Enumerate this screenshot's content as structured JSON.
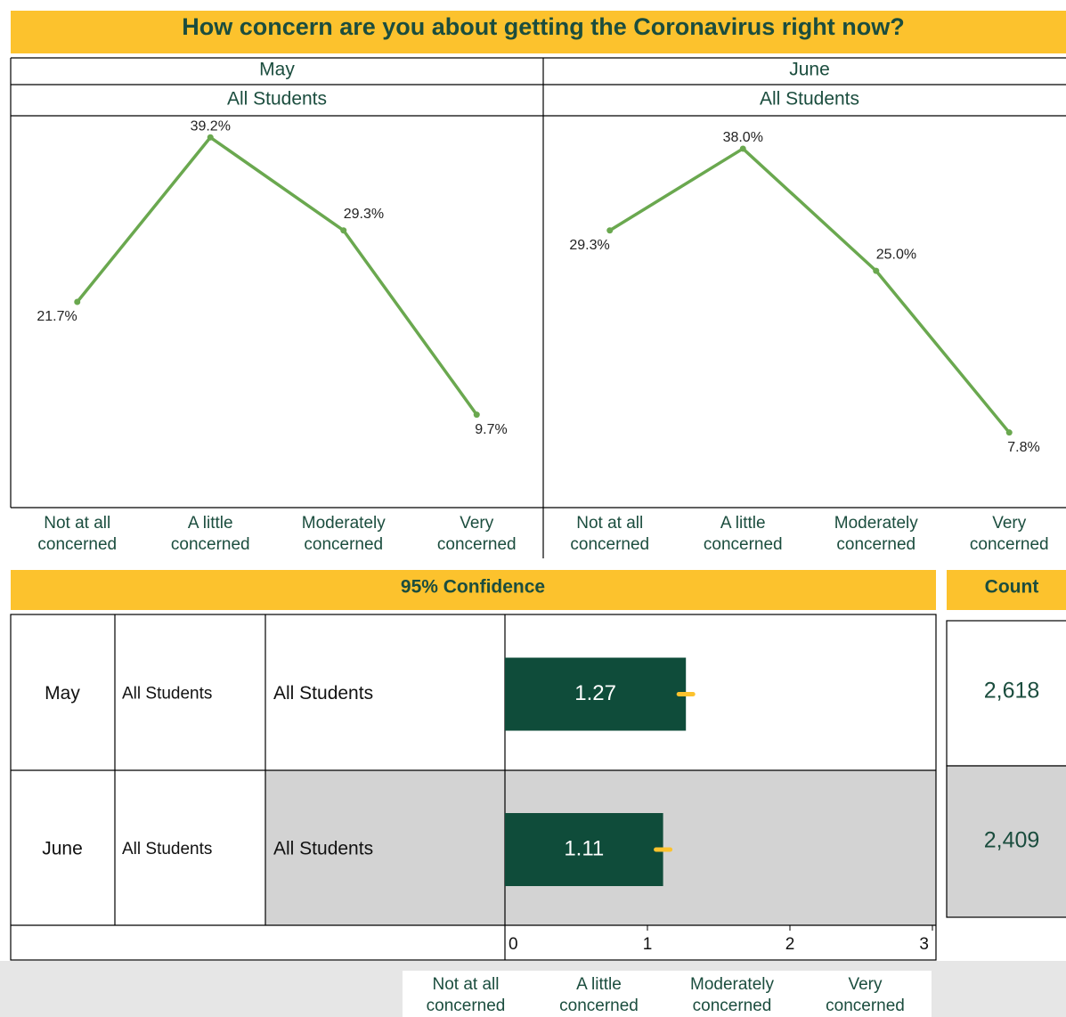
{
  "title": "How concern are you about getting the Coronavirus right now?",
  "chart_data": [
    {
      "type": "line",
      "title": "May",
      "subtitle": "All Students",
      "categories": [
        "Not at all concerned",
        "A little concerned",
        "Moderately concerned",
        "Very concerned"
      ],
      "values": [
        21.7,
        39.2,
        29.3,
        9.7
      ],
      "value_labels": [
        "21.7%",
        "39.2%",
        "29.3%",
        "9.7%"
      ],
      "color": "#6aa84f",
      "ylim": [
        0,
        41.5
      ]
    },
    {
      "type": "line",
      "title": "June",
      "subtitle": "All Students",
      "categories": [
        "Not at all concerned",
        "A little concerned",
        "Moderately concerned",
        "Very concerned"
      ],
      "values": [
        29.3,
        38.0,
        25.0,
        7.8
      ],
      "value_labels": [
        "29.3%",
        "38.0%",
        "25.0%",
        "7.8%"
      ],
      "color": "#6aa84f",
      "ylim": [
        0,
        41.5
      ]
    },
    {
      "type": "bar",
      "orientation": "horizontal",
      "title": "95% Confidence",
      "categories": [
        "May",
        "June"
      ],
      "groups": [
        "All Students",
        "All Students"
      ],
      "subgroups": [
        "All Students",
        "All Students"
      ],
      "values": [
        1.27,
        1.11
      ],
      "errors": [
        0.05,
        0.05
      ],
      "color": "#0f4c3a",
      "error_color": "#fcc22d",
      "xlim": [
        0,
        3
      ],
      "xticks": [
        0,
        1,
        2,
        3
      ],
      "legend": [
        "Not at all concerned",
        "A little concerned",
        "Moderately concerned",
        "Very concerned"
      ]
    }
  ],
  "count": {
    "title": "Count",
    "values": [
      "2,618",
      "2,409"
    ]
  }
}
